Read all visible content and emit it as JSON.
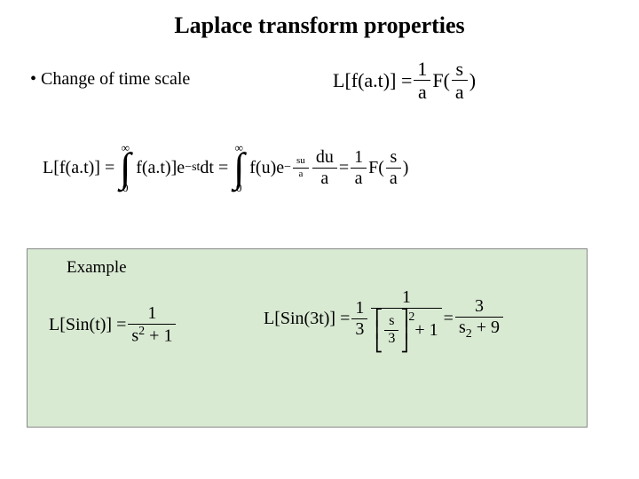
{
  "title": "Laplace transform properties",
  "bullet": "• Change of time scale",
  "property": {
    "lhs": "L[f(a.t)] =",
    "frac1_num": "1",
    "frac1_den": "a",
    "F": "F(",
    "arg_num": "s",
    "arg_den": "a",
    "close": ")"
  },
  "derivation": {
    "lhs": "L[f(a.t)] =",
    "int1_ub": "∞",
    "int1_lb": "0",
    "int1_body1": "f(a.t)]e",
    "int1_exp1": "−st",
    "int1_body2": "dt =",
    "int2_ub": "∞",
    "int2_lb": "0",
    "int2_body1": "f(u)e",
    "int2_exp_num": "su",
    "int2_exp_neg": "−",
    "int2_exp_den": "a",
    "du_num": "du",
    "du_den": "a",
    "eq2": " = ",
    "r_frac_num": "1",
    "r_frac_den": "a",
    "rF": "F(",
    "r_arg_num": "s",
    "r_arg_den": "a",
    "r_close": ")"
  },
  "example": {
    "label": "Example",
    "left": {
      "lhs": "L[Sin(t)] =",
      "num": "1",
      "den_a": "s",
      "den_sup": "2",
      "den_b": " + 1"
    },
    "right": {
      "lhs": "L[Sin(3t)] =",
      "f1_num": "1",
      "f1_den": "3",
      "inner_num": "1",
      "brk_in_num": "s",
      "brk_in_den": "3",
      "brk_sup": "2",
      "brk_tail": " + 1",
      "eq": " = ",
      "res_num": "3",
      "res_den_a": "s",
      "res_den_sub": "2",
      "res_den_b": " + 9"
    }
  },
  "colors": {
    "example_bg": "#d9ead3",
    "text": "#000000",
    "page_bg": "#ffffff"
  }
}
